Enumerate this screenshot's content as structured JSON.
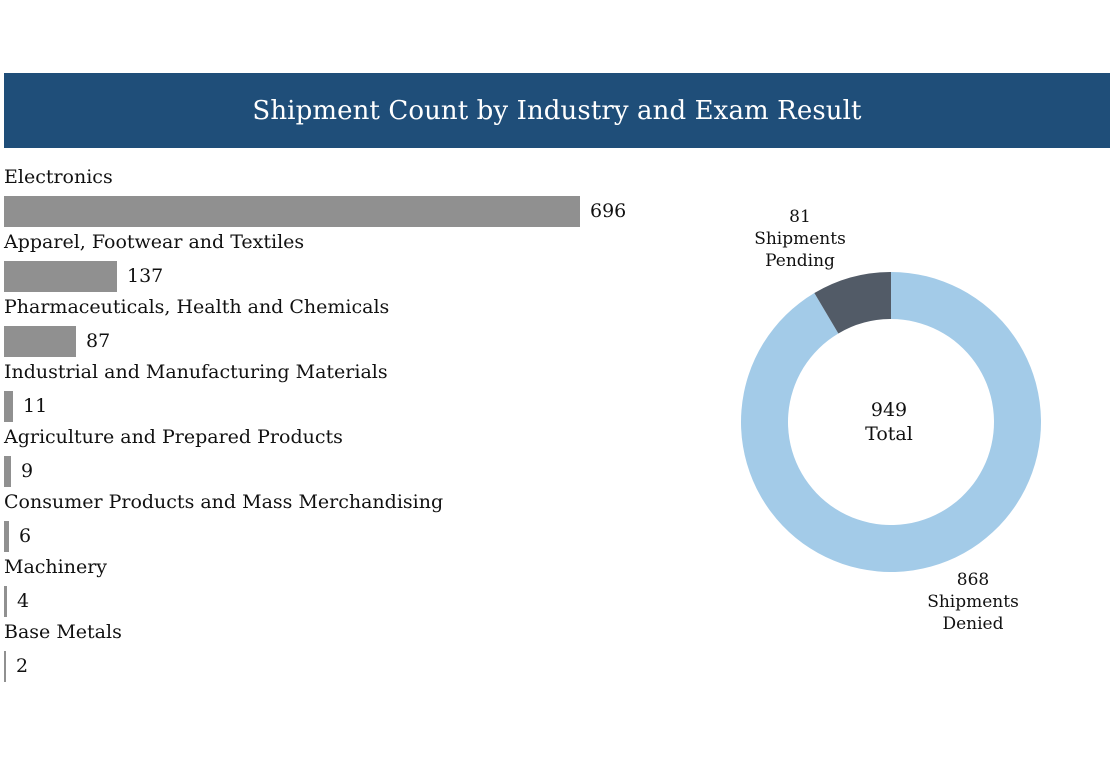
{
  "title": "Shipment Count by Industry and Exam Result",
  "colors": {
    "header_bg": "#1f4e79",
    "bar": "#909090",
    "denied": "#a3cbe8",
    "pending": "#525b67"
  },
  "chart_data": [
    {
      "type": "bar",
      "orientation": "horizontal",
      "categories": [
        "Electronics",
        "Apparel, Footwear and Textiles",
        "Pharmaceuticals, Health and Chemicals",
        "Industrial and Manufacturing Materials",
        "Agriculture and Prepared Products",
        "Consumer Products and Mass Merchandising",
        "Machinery",
        "Base Metals"
      ],
      "values": [
        696,
        137,
        87,
        11,
        9,
        6,
        4,
        2
      ],
      "title": "",
      "xlabel": "",
      "ylabel": ""
    },
    {
      "type": "pie",
      "style": "donut",
      "slices": [
        {
          "name": "Shipments Denied",
          "value": 868,
          "lines": [
            "868",
            "Shipments",
            "Denied"
          ]
        },
        {
          "name": "Shipments Pending",
          "value": 81,
          "lines": [
            "81",
            "Shipments",
            "Pending"
          ]
        }
      ],
      "center_lines": [
        "949",
        "Total"
      ]
    }
  ]
}
